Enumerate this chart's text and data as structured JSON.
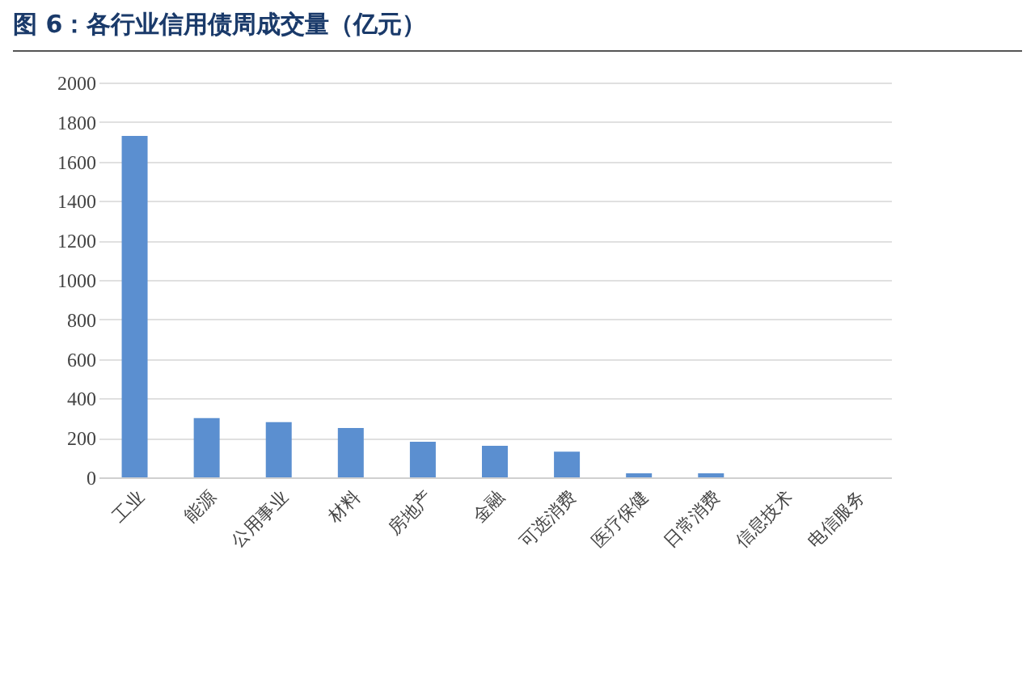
{
  "chart_data": {
    "type": "bar",
    "title": "图 6：各行业信用债周成交量（亿元）",
    "categories": [
      "工业",
      "能源",
      "公用事业",
      "材料",
      "房地产",
      "金融",
      "可选消费",
      "医疗保健",
      "日常消费",
      "信息技术",
      "电信服务"
    ],
    "values": [
      1730,
      300,
      280,
      250,
      180,
      160,
      130,
      20,
      20,
      0,
      0
    ],
    "color": "#5b8fd0",
    "ylim": [
      0,
      2000
    ],
    "yticks": [
      0,
      200,
      400,
      600,
      800,
      1000,
      1200,
      1400,
      1600,
      1800,
      2000
    ],
    "grid": "y"
  }
}
